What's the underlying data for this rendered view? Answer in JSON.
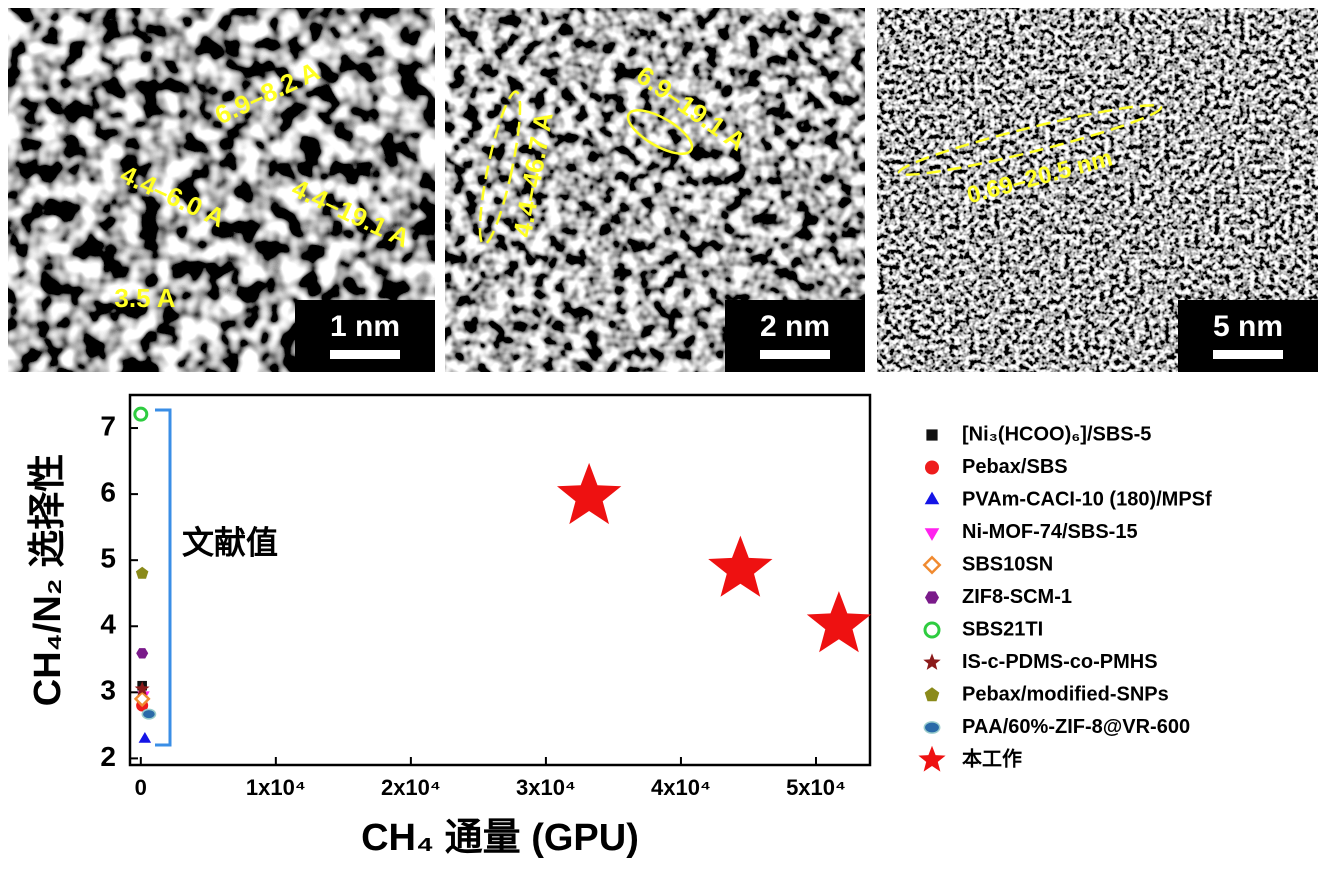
{
  "images": [
    {
      "annotations": [
        "6.9–8.2 A",
        "4.4–6.0 A",
        "4.4–19.1 A",
        "3.5 A"
      ],
      "scale_bar": "1 nm"
    },
    {
      "annotations": [
        "4.4–46.7 A",
        "6.9–19.1 A"
      ],
      "scale_bar": "2 nm"
    },
    {
      "annotations": [
        "0.69–20.5 nm"
      ],
      "scale_bar": "5 nm"
    }
  ],
  "chart_data": {
    "type": "scatter",
    "xlabel": "CH₄ 通量 (GPU)",
    "ylabel": "CH₄/N₂ 选择性",
    "annotation": "文献值",
    "xlim": [
      -800,
      54000
    ],
    "ylim": [
      1.9,
      7.5
    ],
    "xticks": [
      0,
      {
        "value": 10000,
        "label": "1x10⁴"
      },
      {
        "value": 20000,
        "label": "2x10⁴"
      },
      {
        "value": 30000,
        "label": "3x10⁴"
      },
      {
        "value": 40000,
        "label": "4x10⁴"
      },
      {
        "value": 50000,
        "label": "5x10⁴"
      }
    ],
    "yticks": [
      2,
      3,
      4,
      5,
      6,
      7
    ],
    "series": [
      {
        "name": "[Ni₃(HCOO)₆]/SBS-5",
        "color": "#111111",
        "marker": "square",
        "x": [
          100
        ],
        "y": [
          3.1
        ]
      },
      {
        "name": "Pebax/SBS",
        "color": "#ee1c1c",
        "marker": "circle",
        "x": [
          100
        ],
        "y": [
          2.8
        ]
      },
      {
        "name": "PVAm-CACI-10 (180)/MPSf",
        "color": "#1414e6",
        "marker": "triangle",
        "x": [
          300
        ],
        "y": [
          2.29
        ]
      },
      {
        "name": "Ni-MOF-74/SBS-15",
        "color": "#ff22ee",
        "marker": "triangle-down",
        "x": [
          200
        ],
        "y": [
          2.96
        ]
      },
      {
        "name": "SBS10SN",
        "color": "#f08a30",
        "marker": "diamond",
        "x": [
          100
        ],
        "y": [
          2.9
        ]
      },
      {
        "name": "ZIF8-SCM-1",
        "color": "#7a1a8a",
        "marker": "hexagon",
        "x": [
          100
        ],
        "y": [
          3.59
        ]
      },
      {
        "name": "SBS21TI",
        "color": "#2ecc40",
        "marker": "circle-half",
        "x": [
          0
        ],
        "y": [
          7.21
        ]
      },
      {
        "name": "IS-c-PDMS-co-PMHS",
        "color": "#8b1a1a",
        "marker": "star",
        "x": [
          100
        ],
        "y": [
          3.05
        ]
      },
      {
        "name": "Pebax/modified-SNPs",
        "color": "#8a8a1a",
        "marker": "pentagon",
        "x": [
          100
        ],
        "y": [
          4.8
        ]
      },
      {
        "name": "PAA/60%-ZIF-8@VR-600",
        "color": "#2a6aa8",
        "marker": "sphere",
        "x": [
          600
        ],
        "y": [
          2.67
        ]
      },
      {
        "name": "本工作",
        "color": "#ee1111",
        "marker": "star",
        "x": [
          33200,
          44400,
          51700
        ],
        "y": [
          5.96,
          4.86,
          4.02
        ]
      }
    ]
  }
}
